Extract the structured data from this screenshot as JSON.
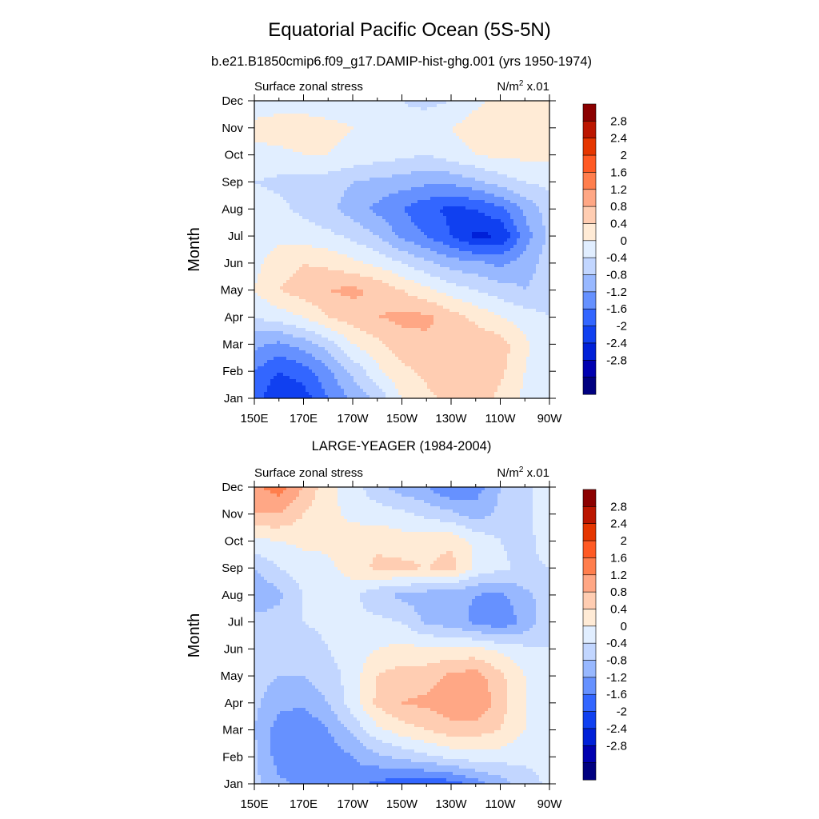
{
  "figure": {
    "title": "Equatorial Pacific Ocean (5S-5N)",
    "subtitle": "b.e21.B1850cmip6.f09_g17.DAMIP-hist-ghg.001 (yrs 1950-1974)"
  },
  "chart_data": [
    {
      "type": "heatmap",
      "panel_title": "",
      "left_label": "Surface zonal stress",
      "right_label_base": "N/m",
      "right_label_sup": "2",
      "right_label_tail": " x.01",
      "ylabel": "Month",
      "x_ticks": [
        "150E",
        "170E",
        "170W",
        "150W",
        "130W",
        "110W",
        "90W"
      ],
      "x_tick_lon": [
        150,
        170,
        190,
        210,
        230,
        250,
        270
      ],
      "xlim": [
        150,
        270
      ],
      "y_ticks": [
        "Jan",
        "Feb",
        "Mar",
        "Apr",
        "May",
        "Jun",
        "Jul",
        "Aug",
        "Sep",
        "Oct",
        "Nov",
        "Dec"
      ],
      "lon": [
        150,
        160,
        170,
        180,
        190,
        200,
        210,
        220,
        230,
        240,
        250,
        260,
        270
      ],
      "values": [
        [
          -1.4,
          -2.0,
          -1.8,
          -1.2,
          -0.7,
          -0.3,
          0.4,
          0.7,
          0.9,
          1.0,
          0.7,
          0.3,
          0.0
        ],
        [
          -1.2,
          -1.6,
          -1.4,
          -0.9,
          -0.3,
          0.3,
          0.7,
          0.9,
          1.1,
          1.1,
          0.9,
          0.4,
          0.0
        ],
        [
          -0.7,
          -0.9,
          -0.6,
          -0.2,
          0.4,
          0.7,
          1.0,
          1.1,
          1.1,
          1.1,
          1.0,
          0.5,
          0.1
        ],
        [
          0.0,
          0.2,
          0.4,
          0.8,
          1.0,
          1.2,
          1.3,
          1.3,
          1.0,
          0.7,
          0.4,
          0.2,
          0.0
        ],
        [
          0.4,
          0.8,
          1.0,
          1.2,
          1.3,
          1.1,
          0.8,
          0.5,
          0.2,
          0.0,
          -0.2,
          -0.4,
          -0.2
        ],
        [
          0.3,
          0.6,
          0.8,
          0.7,
          0.5,
          0.3,
          0.0,
          -0.3,
          -0.6,
          -0.7,
          -0.9,
          -0.6,
          -0.2
        ],
        [
          0.2,
          0.3,
          0.2,
          0.1,
          -0.1,
          -0.4,
          -0.9,
          -1.2,
          -1.6,
          -2.1,
          -2.0,
          -1.0,
          -0.3
        ],
        [
          0.2,
          0.1,
          -0.1,
          -0.3,
          -0.6,
          -0.9,
          -1.2,
          -1.5,
          -1.7,
          -1.6,
          -1.3,
          -0.7,
          -0.2
        ],
        [
          0.0,
          -0.1,
          -0.2,
          -0.2,
          -0.4,
          -0.5,
          -0.6,
          -0.7,
          -0.7,
          -0.5,
          -0.2,
          0.0,
          0.1
        ],
        [
          0.3,
          0.3,
          0.4,
          0.4,
          0.3,
          0.2,
          0.1,
          0.0,
          0.2,
          0.4,
          0.5,
          0.5,
          0.5
        ],
        [
          0.5,
          0.6,
          0.6,
          0.5,
          0.4,
          0.2,
          0.1,
          0.2,
          0.4,
          0.6,
          0.7,
          0.7,
          0.6
        ],
        [
          0.2,
          0.2,
          0.2,
          0.2,
          0.2,
          0.1,
          0.0,
          -0.1,
          0.0,
          0.3,
          0.5,
          0.5,
          0.4
        ]
      ]
    },
    {
      "type": "heatmap",
      "panel_title": "LARGE-YEAGER (1984-2004)",
      "left_label": "Surface zonal stress",
      "right_label_base": "N/m",
      "right_label_sup": "2",
      "right_label_tail": " x.01",
      "ylabel": "Month",
      "x_ticks": [
        "150E",
        "170E",
        "170W",
        "150W",
        "130W",
        "110W",
        "90W"
      ],
      "x_tick_lon": [
        150,
        170,
        190,
        210,
        230,
        250,
        270
      ],
      "xlim": [
        150,
        270
      ],
      "y_ticks": [
        "Jan",
        "Feb",
        "Mar",
        "Apr",
        "May",
        "Jun",
        "Jul",
        "Aug",
        "Sep",
        "Oct",
        "Nov",
        "Dec"
      ],
      "lon": [
        150,
        160,
        170,
        180,
        190,
        200,
        210,
        220,
        230,
        240,
        250,
        260,
        270
      ],
      "values": [
        [
          -0.3,
          -0.7,
          -0.9,
          -0.9,
          -1.0,
          -1.3,
          -1.4,
          -1.5,
          -1.4,
          -1.0,
          -0.6,
          -0.2,
          0.1
        ],
        [
          -0.3,
          -1.0,
          -1.2,
          -1.1,
          -0.8,
          -0.5,
          -0.3,
          -0.1,
          0.1,
          0.2,
          0.2,
          0.1,
          0.1
        ],
        [
          -0.4,
          -1.0,
          -1.2,
          -0.8,
          -0.3,
          0.3,
          0.6,
          0.8,
          1.0,
          1.0,
          0.8,
          0.4,
          0.1
        ],
        [
          -0.3,
          -0.7,
          -0.7,
          -0.4,
          0.2,
          0.9,
          1.2,
          1.3,
          1.5,
          1.6,
          1.0,
          0.4,
          0.1
        ],
        [
          -0.2,
          -0.4,
          -0.4,
          -0.2,
          0.2,
          0.8,
          1.0,
          1.0,
          1.3,
          1.4,
          0.9,
          0.4,
          0.1
        ],
        [
          -0.1,
          -0.2,
          -0.2,
          0.0,
          0.2,
          0.4,
          0.5,
          0.5,
          0.5,
          0.5,
          0.3,
          0.1,
          0.0
        ],
        [
          -0.2,
          -0.2,
          0.0,
          0.1,
          0.1,
          0.1,
          0.0,
          -0.5,
          -0.6,
          -0.9,
          -1.1,
          -0.7,
          -0.1
        ],
        [
          -0.8,
          -0.5,
          0.0,
          0.2,
          0.1,
          -0.3,
          -0.5,
          -0.6,
          -0.7,
          -0.8,
          -0.9,
          -0.5,
          -0.2
        ],
        [
          -0.4,
          0.0,
          0.2,
          0.3,
          0.6,
          0.9,
          0.9,
          0.8,
          1.0,
          0.3,
          0.1,
          -0.1,
          0.0
        ],
        [
          0.3,
          0.4,
          0.5,
          0.5,
          0.6,
          0.7,
          0.6,
          0.6,
          0.7,
          0.3,
          0.0,
          -0.2,
          0.3
        ],
        [
          1.2,
          1.2,
          0.8,
          0.5,
          0.3,
          0.2,
          0.1,
          -0.1,
          -0.3,
          -0.6,
          -0.3,
          -0.2,
          0.4
        ],
        [
          1.5,
          1.8,
          1.2,
          0.5,
          0.2,
          -0.3,
          -0.6,
          -0.8,
          -1.2,
          -1.0,
          -0.4,
          -0.1,
          0.2
        ]
      ]
    }
  ],
  "colorbar": {
    "colors": [
      "#000080",
      "#0000B0",
      "#0020D8",
      "#1040F0",
      "#3366FF",
      "#6691FF",
      "#98B8FF",
      "#C2D6FF",
      "#E1EEFF",
      "#FFEBD6",
      "#FFCDB2",
      "#FFA785",
      "#FF7E4D",
      "#FF5A24",
      "#E53600",
      "#BB1600",
      "#8B0000"
    ],
    "labels": [
      "2.8",
      "2.4",
      "2",
      "1.6",
      "1.2",
      "0.8",
      "0.4",
      "0",
      "-0.4",
      "-0.8",
      "-1.2",
      "-1.6",
      "-2",
      "-2.4",
      "-2.8"
    ]
  }
}
